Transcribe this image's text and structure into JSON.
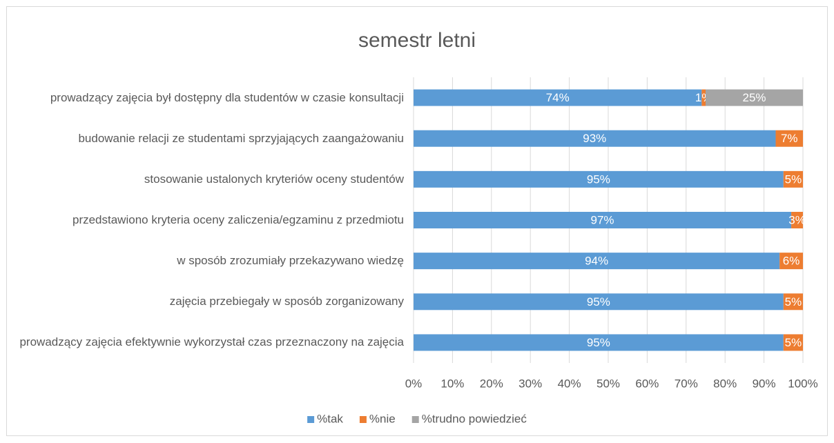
{
  "chart_data": {
    "type": "bar",
    "orientation": "horizontal",
    "stacked": true,
    "title": "semestr letni",
    "categories": [
      "prowadzący zajęcia był dostępny dla studentów w czasie konsultacji",
      "budowanie relacji ze studentami sprzyjających zaangażowaniu",
      "stosowanie ustalonych  kryteriów oceny studentów",
      "przedstawiono kryteria oceny zaliczenia/egzaminu z przedmiotu",
      "w sposób zrozumiały przekazywano wiedzę",
      "zajęcia przebiegały w sposób zorganizowany",
      "prowadzący zajęcia efektywnie wykorzystał czas przeznaczony na zajęcia"
    ],
    "series": [
      {
        "name": "%tak",
        "color": "#5b9bd5",
        "values": [
          74,
          93,
          95,
          97,
          94,
          95,
          95
        ],
        "value_labels": [
          "74%",
          "93%",
          "95%",
          "97%",
          "94%",
          "95%",
          "95%"
        ]
      },
      {
        "name": "%nie",
        "color": "#ed7d31",
        "values": [
          1,
          7,
          5,
          3,
          6,
          5,
          5
        ],
        "value_labels": [
          "1%",
          "7%",
          "5%",
          "3%",
          "6%",
          "5%",
          "5%"
        ]
      },
      {
        "name": "%trudno powiedzieć",
        "color": "#a5a5a5",
        "values": [
          25,
          0,
          0,
          0,
          0,
          0,
          0
        ],
        "value_labels": [
          "25%",
          null,
          null,
          null,
          null,
          null,
          null
        ]
      }
    ],
    "xlim": [
      0,
      100
    ],
    "xticks": [
      {
        "value": 0,
        "label": "0%"
      },
      {
        "value": 10,
        "label": "10%"
      },
      {
        "value": 20,
        "label": "20%"
      },
      {
        "value": 30,
        "label": "30%"
      },
      {
        "value": 40,
        "label": "40%"
      },
      {
        "value": 50,
        "label": "50%"
      },
      {
        "value": 60,
        "label": "60%"
      },
      {
        "value": 70,
        "label": "70%"
      },
      {
        "value": 80,
        "label": "80%"
      },
      {
        "value": 90,
        "label": "90%"
      },
      {
        "value": 100,
        "label": "100%"
      }
    ],
    "grid": true,
    "legend": "bottom"
  }
}
